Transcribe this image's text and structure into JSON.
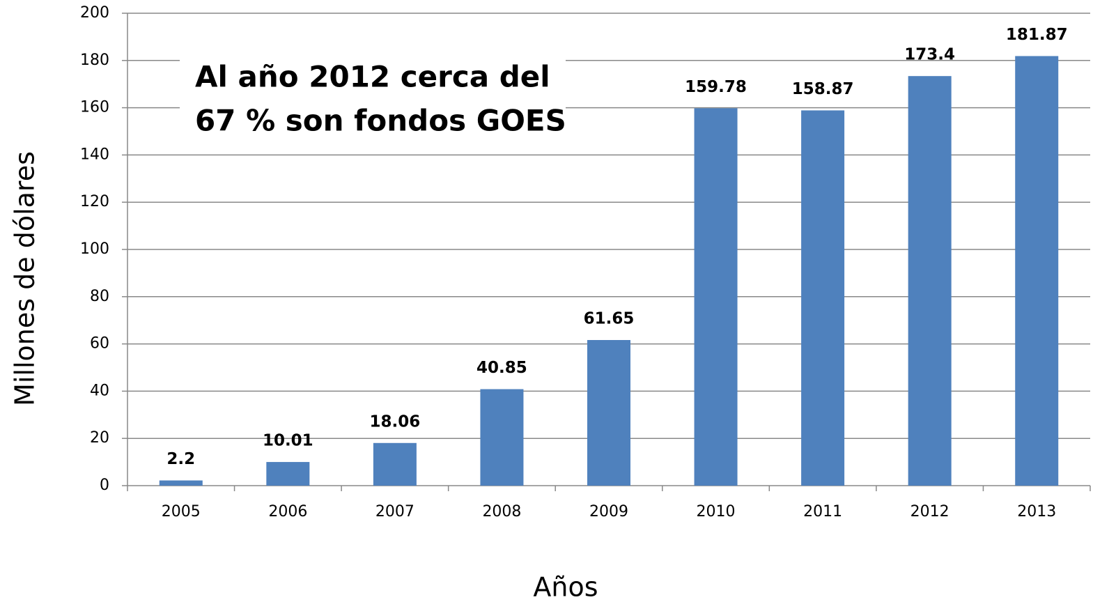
{
  "chart_data": {
    "type": "bar",
    "y_label": "Millones de dólares",
    "x_label": "Años",
    "annotation": [
      "Al año 2012 cerca del",
      "67 % son fondos GOES"
    ],
    "categories": [
      "2005",
      "2006",
      "2007",
      "2008",
      "2009",
      "2010",
      "2011",
      "2012",
      "2013"
    ],
    "values": [
      2.2,
      10.01,
      18.06,
      40.85,
      61.65,
      159.78,
      158.87,
      173.4,
      181.87
    ],
    "color": "#4f81bd",
    "annotation_color": "#ff0000",
    "ylim": [
      0,
      200
    ],
    "yticks": [
      0,
      20,
      40,
      60,
      80,
      100,
      120,
      140,
      160,
      180,
      200
    ],
    "grid": true
  }
}
